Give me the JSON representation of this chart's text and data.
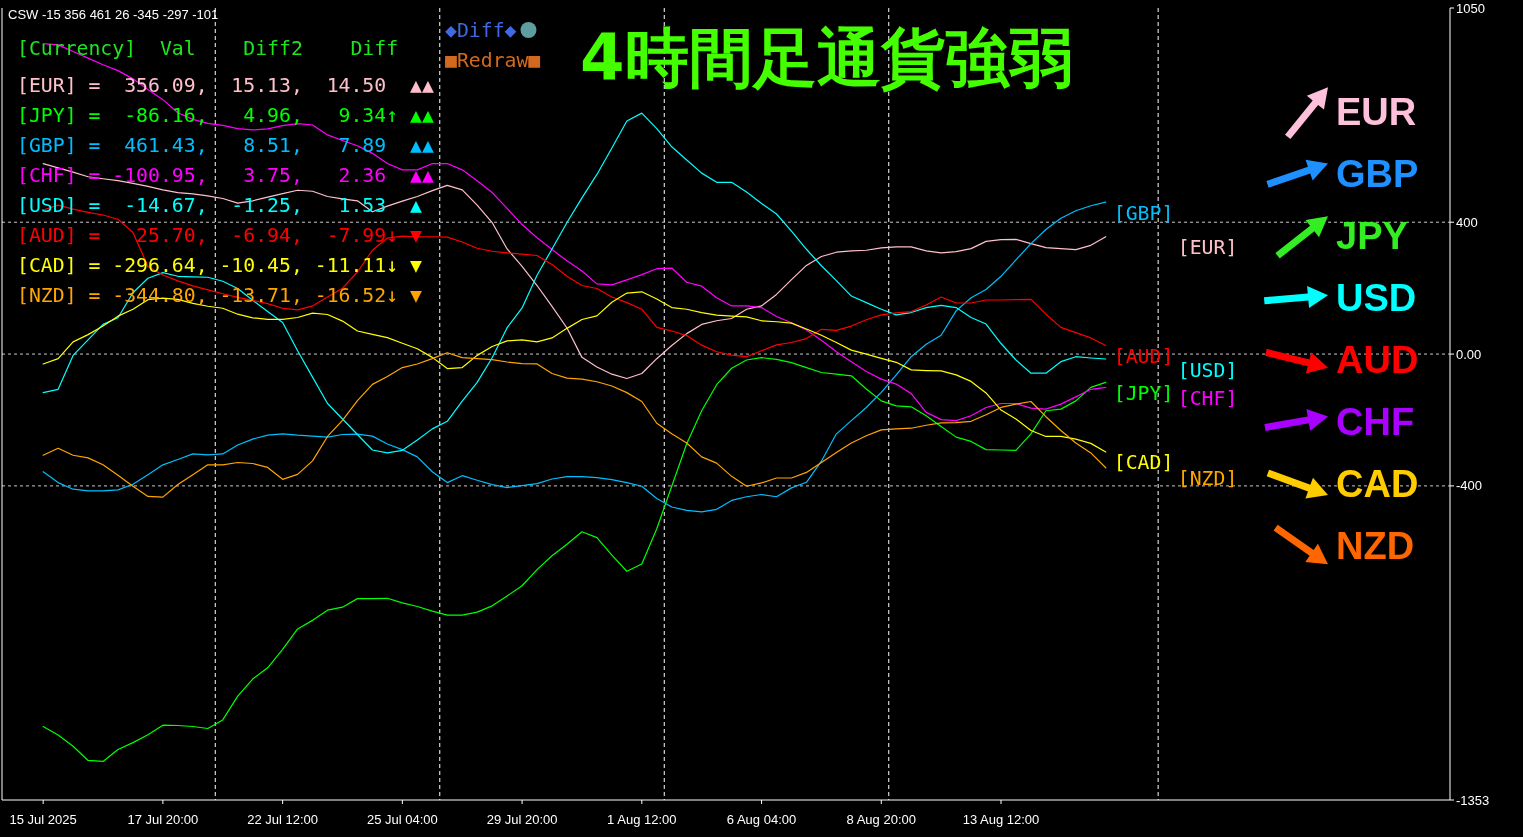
{
  "chart_data": [
    {
      "type": "line",
      "title": "4時間足通貨強弱",
      "annotations": [
        "CSW -15 356 461 26 -345 -297 -101",
        "[Currency]  Val    Diff2    Diff",
        "[EUR] =  356.09,  15.13,  14.50  ▲▲",
        "[JPY] =  -86.16,   4.96,   9.34↑ ▲▲",
        "[GBP] =  461.43,   8.51,   7.89  ▲▲",
        "[CHF] = -100.95,   3.75,   2.36  ▲▲",
        "[USD] =  -14.67,  -1.25,   1.53  ▲",
        "[AUD] =   25.70,  -6.94,  -7.99↓ ▼",
        "[CAD] = -296.64, -10.45, -11.11↓ ▼",
        "[NZD] = -344.80, -13.71, -16.52↓ ▼",
        "◆Diff◆",
        "■Redraw■"
      ],
      "categories": [
        "15 Jul 2025",
        null,
        null,
        null,
        null,
        null,
        null,
        null,
        "17 Jul 20:00",
        null,
        null,
        null,
        null,
        null,
        null,
        null,
        "22 Jul 12:00",
        null,
        null,
        null,
        null,
        null,
        null,
        null,
        "25 Jul 04:00",
        null,
        null,
        null,
        null,
        null,
        null,
        null,
        "29 Jul 20:00",
        null,
        null,
        null,
        null,
        null,
        null,
        null,
        "1 Aug 12:00",
        null,
        null,
        null,
        null,
        null,
        null,
        null,
        "6 Aug 04:00",
        null,
        null,
        null,
        null,
        null,
        null,
        null,
        "8 Aug 20:00",
        null,
        null,
        null,
        null,
        null,
        null,
        null,
        "13 Aug 12:00",
        null,
        null,
        null,
        null,
        null,
        null,
        null
      ],
      "ylim": [
        -1353,
        1050
      ],
      "yticks": [
        1050,
        400,
        {
          "value": 0,
          "label": "0.00"
        },
        -400,
        -1353
      ],
      "grid": "y",
      "series": [
        {
          "name": "[EUR]",
          "color": "#ffc0cb",
          "values": [
            578,
            565,
            552,
            538,
            532,
            526,
            518,
            509,
            498,
            490,
            486,
            480,
            472,
            458,
            465,
            476,
            487,
            497,
            494,
            478,
            471,
            465,
            432,
            449,
            464,
            478,
            496,
            512,
            498,
            452,
            399,
            319,
            266,
            208,
            145,
            79,
            -10,
            -39,
            -61,
            -74,
            -59,
            -14,
            26,
            62,
            90,
            101,
            108,
            136,
            146,
            181,
            226,
            269,
            296,
            309,
            313,
            315,
            322,
            325,
            325,
            313,
            307,
            311,
            320,
            342,
            347,
            348,
            335,
            323,
            320,
            317,
            330,
            356
          ]
        },
        {
          "name": "[JPY]",
          "color": "#00ff00",
          "values": [
            -1130,
            -1156,
            -1190,
            -1233,
            -1236,
            -1200,
            -1179,
            -1155,
            -1126,
            -1127,
            -1130,
            -1136,
            -1110,
            -1038,
            -986,
            -952,
            -896,
            -834,
            -808,
            -777,
            -768,
            -742,
            -742,
            -741,
            -755,
            -766,
            -780,
            -792,
            -792,
            -783,
            -764,
            -734,
            -703,
            -654,
            -612,
            -577,
            -539,
            -557,
            -610,
            -659,
            -637,
            -530,
            -401,
            -272,
            -172,
            -93,
            -43,
            -18,
            -11,
            -16,
            -26,
            -41,
            -56,
            -61,
            -66,
            -106,
            -142,
            -157,
            -160,
            -187,
            -220,
            -252,
            -265,
            -290,
            -291,
            -292,
            -242,
            -172,
            -167,
            -142,
            -101,
            -86
          ]
        },
        {
          "name": "[GBP]",
          "color": "#00bfff",
          "values": [
            -357,
            -390,
            -410,
            -415,
            -415,
            -412,
            -395,
            -366,
            -336,
            -320,
            -303,
            -306,
            -303,
            -276,
            -258,
            -246,
            -242,
            -246,
            -249,
            -252,
            -244,
            -243,
            -249,
            -273,
            -290,
            -312,
            -357,
            -390,
            -369,
            -383,
            -396,
            -405,
            -399,
            -393,
            -379,
            -372,
            -372,
            -375,
            -381,
            -390,
            -401,
            -438,
            -464,
            -474,
            -479,
            -471,
            -444,
            -433,
            -426,
            -433,
            -406,
            -389,
            -325,
            -242,
            -202,
            -162,
            -116,
            -63,
            -8,
            30,
            57,
            131,
            171,
            196,
            236,
            286,
            335,
            378,
            412,
            435,
            450,
            461
          ]
        },
        {
          "name": "[CHF]",
          "color": "#ff00ff",
          "values": [
            942,
            938,
            918,
            898,
            878,
            860,
            835,
            803,
            772,
            732,
            712,
            700,
            694,
            684,
            680,
            683,
            693,
            699,
            695,
            665,
            648,
            632,
            609,
            578,
            559,
            559,
            578,
            578,
            559,
            526,
            490,
            442,
            393,
            353,
            317,
            283,
            252,
            213,
            210,
            225,
            241,
            259,
            261,
            218,
            206,
            171,
            146,
            146,
            141,
            114,
            95,
            73,
            42,
            7,
            -23,
            -53,
            -76,
            -91,
            -120,
            -177,
            -199,
            -202,
            -187,
            -162,
            -150,
            -150,
            -164,
            -167,
            -152,
            -130,
            -107,
            -101
          ]
        },
        {
          "name": "[USD]",
          "color": "#00ffff",
          "values": [
            -117,
            -107,
            -4,
            43,
            90,
            110,
            186,
            230,
            247,
            236,
            234,
            233,
            221,
            199,
            163,
            129,
            96,
            10,
            -70,
            -150,
            -197,
            -244,
            -291,
            -300,
            -292,
            -261,
            -227,
            -204,
            -143,
            -86,
            -11,
            80,
            140,
            239,
            319,
            399,
            474,
            545,
            625,
            707,
            731,
            684,
            629,
            589,
            549,
            521,
            521,
            492,
            457,
            425,
            373,
            318,
            268,
            223,
            176,
            156,
            136,
            119,
            126,
            141,
            148,
            141,
            111,
            91,
            32,
            -18,
            -58,
            -58,
            -23,
            -8,
            -12,
            -15
          ]
        },
        {
          "name": "[AUD]",
          "color": "#ff0000",
          "values": [
            437,
            452,
            440,
            430,
            422,
            409,
            369,
            266,
            240,
            222,
            207,
            195,
            183,
            172,
            163,
            153,
            139,
            134,
            146,
            173,
            200,
            249,
            315,
            352,
            358,
            356,
            356,
            355,
            340,
            321,
            312,
            307,
            303,
            299,
            272,
            236,
            208,
            199,
            173,
            156,
            136,
            81,
            70,
            56,
            27,
            7,
            -3,
            -8,
            10,
            28,
            35,
            47,
            75,
            72,
            85,
            104,
            119,
            125,
            129,
            149,
            173,
            155,
            155,
            164,
            164,
            165,
            166,
            121,
            81,
            65,
            49,
            26
          ]
        },
        {
          "name": "[CAD]",
          "color": "#ffff00",
          "values": [
            -30,
            -14,
            37,
            59,
            85,
            115,
            136,
            165,
            170,
            166,
            154,
            145,
            139,
            121,
            110,
            105,
            105,
            111,
            124,
            120,
            100,
            70,
            60,
            50,
            33,
            16,
            -10,
            -44,
            -41,
            -4,
            23,
            40,
            43,
            37,
            49,
            78,
            105,
            116,
            157,
            185,
            189,
            167,
            141,
            136,
            126,
            118,
            115,
            113,
            101,
            98,
            94,
            76,
            57,
            35,
            12,
            0,
            -13,
            -25,
            -48,
            -50,
            -51,
            -63,
            -83,
            -118,
            -170,
            -197,
            -232,
            -250,
            -250,
            -258,
            -271,
            -297
          ]
        },
        {
          "name": "[NZD]",
          "color": "#ffa500",
          "values": [
            -307,
            -286,
            -307,
            -315,
            -336,
            -368,
            -401,
            -432,
            -434,
            -396,
            -366,
            -336,
            -336,
            -329,
            -332,
            -344,
            -380,
            -365,
            -324,
            -250,
            -201,
            -141,
            -92,
            -68,
            -41,
            -30,
            -14,
            4,
            -11,
            -14,
            -17,
            -24,
            -29,
            -30,
            -59,
            -73,
            -76,
            -84,
            -97,
            -117,
            -144,
            -210,
            -242,
            -270,
            -312,
            -331,
            -371,
            -401,
            -391,
            -376,
            -376,
            -359,
            -329,
            -299,
            -270,
            -248,
            -230,
            -227,
            -225,
            -216,
            -209,
            -208,
            -204,
            -184,
            -162,
            -152,
            -144,
            -190,
            -232,
            -270,
            -300,
            -345
          ]
        }
      ]
    },
    {
      "type": "other",
      "categories": [
        "EUR",
        "GBP",
        "JPY",
        "USD",
        "AUD",
        "CHF",
        "CAD",
        "NZD"
      ],
      "colors": [
        "#ffc0dc",
        "#1e90ff",
        "#33ee22",
        "#00ffff",
        "#ff0000",
        "#aa00ff",
        "#ffcc00",
        "#ff6600"
      ]
    }
  ]
}
